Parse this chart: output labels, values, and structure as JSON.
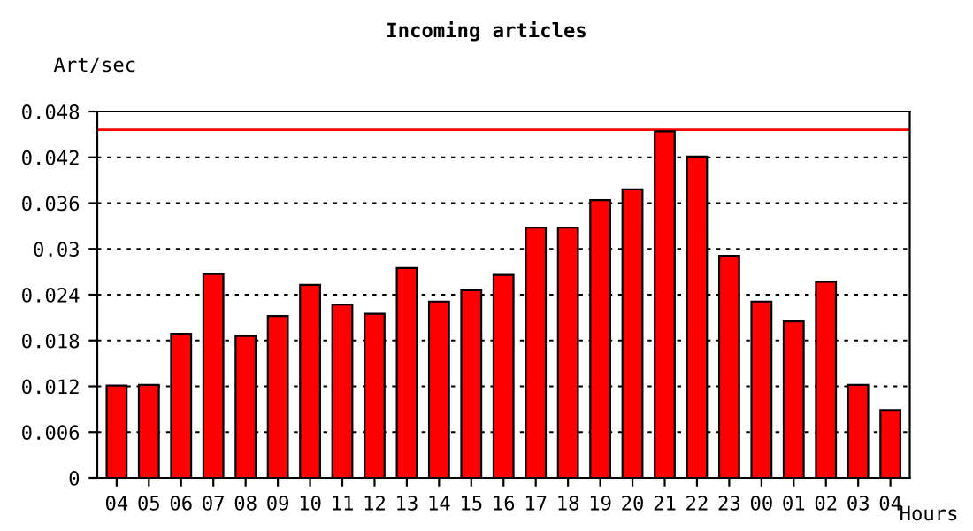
{
  "chart_data": {
    "type": "bar",
    "title": "Incoming articles",
    "xlabel": "Hours",
    "ylabel": "Art/sec",
    "categories": [
      "04",
      "05",
      "06",
      "07",
      "08",
      "09",
      "10",
      "11",
      "12",
      "13",
      "14",
      "15",
      "16",
      "17",
      "18",
      "19",
      "20",
      "21",
      "22",
      "23",
      "00",
      "01",
      "02",
      "03",
      "04"
    ],
    "values": [
      0.0121,
      0.0122,
      0.0189,
      0.0267,
      0.0186,
      0.0212,
      0.0253,
      0.0227,
      0.0215,
      0.0275,
      0.0231,
      0.0246,
      0.0266,
      0.0328,
      0.0328,
      0.0364,
      0.0378,
      0.0454,
      0.0421,
      0.0291,
      0.0231,
      0.0205,
      0.0257,
      0.0122,
      0.0089
    ],
    "color": "#ff0000",
    "ylim": [
      0,
      0.048
    ],
    "yticks": [
      0,
      0.006,
      0.012,
      0.018,
      0.024,
      0.03,
      0.036,
      0.042,
      0.048
    ],
    "grid": "y",
    "ref_lines": [
      {
        "axis": "y",
        "value": 0.0456,
        "color": "#ff0000"
      }
    ]
  }
}
